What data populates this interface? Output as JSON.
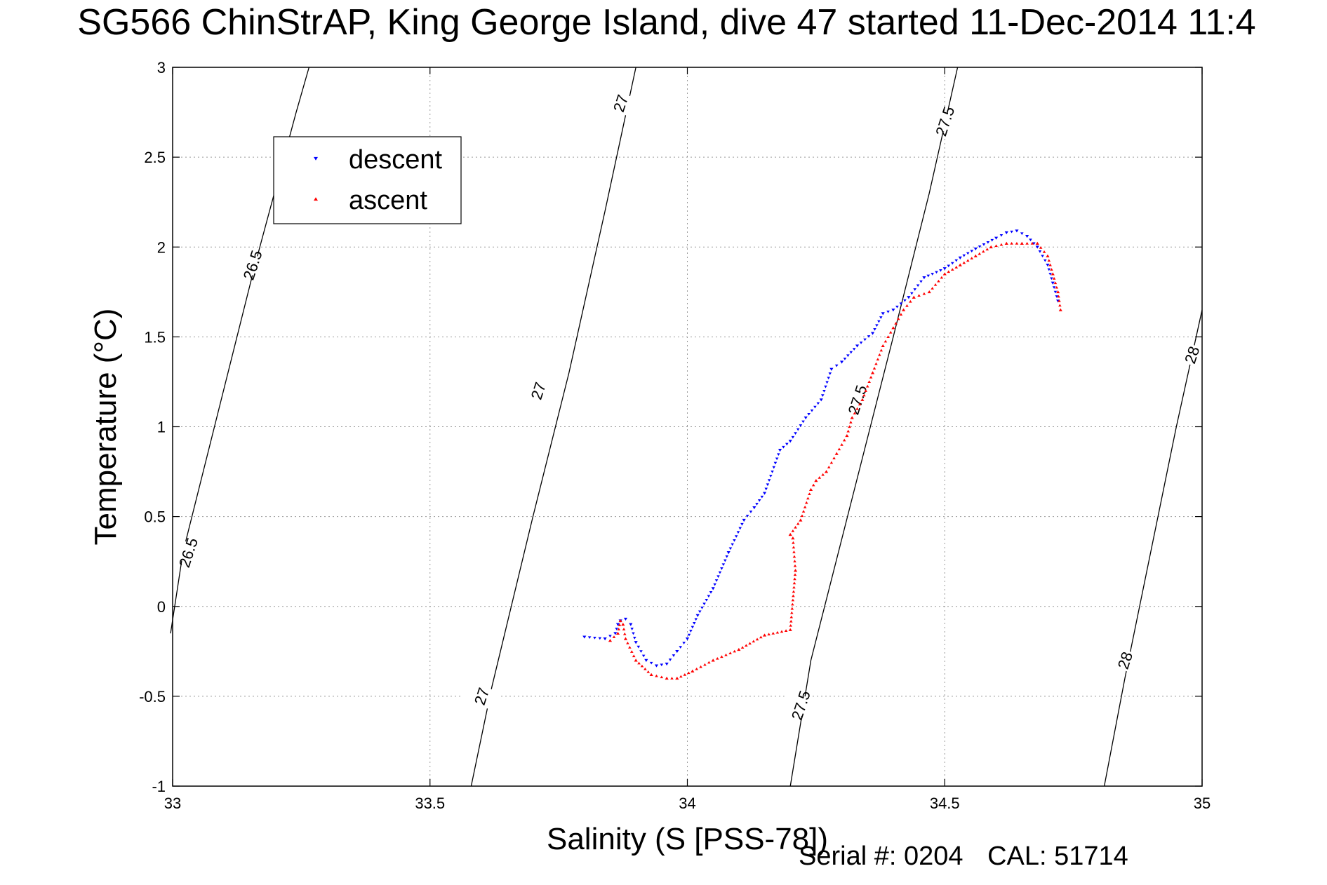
{
  "title": "SG566 ChinStrAP, King George Island, dive 47 started 11-Dec-2014 11:4",
  "footer": {
    "serial": "Serial #: 0204",
    "cal": "CAL: 51714"
  },
  "chart_data": {
    "type": "scatter",
    "title": "SG566 ChinStrAP, King George Island, dive 47 started 11-Dec-2014 11:4",
    "xlabel": "Salinity (S [PSS-78])",
    "ylabel": "Temperature (°C)",
    "xlim": [
      33,
      35
    ],
    "ylim": [
      -1,
      3
    ],
    "xticks": [
      "33",
      "33.5",
      "34",
      "34.5",
      "35"
    ],
    "yticks": [
      "-1",
      "-0.5",
      "0",
      "0.5",
      "1",
      "1.5",
      "2",
      "2.5",
      "3"
    ],
    "grid": true,
    "legend_position": "top-left",
    "colors": {
      "descent": "#0000ff",
      "ascent": "#ff0000",
      "contour": "#000000"
    },
    "contours": [
      {
        "label": "26.5",
        "x": [
          32.996,
          33.02,
          33.09,
          33.16,
          33.24,
          33.265
        ],
        "y": [
          -0.15,
          0.3,
          1.1,
          1.9,
          2.75,
          3.0
        ],
        "label_pos": [
          [
            33.155,
            1.9
          ],
          [
            33.03,
            0.3
          ]
        ]
      },
      {
        "label": "27",
        "x": [
          33.58,
          33.62,
          33.7,
          33.77,
          33.84,
          33.9
        ],
        "y": [
          -1.0,
          -0.45,
          0.5,
          1.3,
          2.2,
          3.0
        ],
        "label_pos": [
          [
            33.87,
            2.8
          ],
          [
            33.71,
            1.2
          ],
          [
            33.6,
            -0.5
          ]
        ]
      },
      {
        "label": "27.5",
        "x": [
          34.2,
          34.24,
          34.32,
          34.4,
          34.47,
          34.525
        ],
        "y": [
          -1.0,
          -0.3,
          0.6,
          1.5,
          2.3,
          3.0
        ],
        "label_pos": [
          [
            34.5,
            2.7
          ],
          [
            34.33,
            1.15
          ],
          [
            34.22,
            -0.55
          ]
        ]
      },
      {
        "label": "28",
        "x": [
          34.81,
          34.85,
          34.9,
          34.95,
          35.0
        ],
        "y": [
          -1.0,
          -0.4,
          0.3,
          1.0,
          1.65
        ],
        "label_pos": [
          [
            34.98,
            1.4
          ],
          [
            34.85,
            -0.3
          ]
        ]
      }
    ],
    "series": [
      {
        "name": "descent",
        "marker": "triangle-down",
        "x": [
          33.8,
          33.84,
          33.86,
          33.865,
          33.87,
          33.88,
          33.89,
          33.9,
          33.92,
          33.94,
          33.96,
          33.98,
          34.0,
          34.02,
          34.05,
          34.08,
          34.11,
          34.13,
          34.15,
          34.18,
          34.2,
          34.23,
          34.26,
          34.28,
          34.3,
          34.33,
          34.36,
          34.38,
          34.4,
          34.43,
          34.46,
          34.5,
          34.53,
          34.56,
          34.6,
          34.62,
          34.64,
          34.66,
          34.68,
          34.7,
          34.71,
          34.72
        ],
        "y": [
          -0.17,
          -0.18,
          -0.15,
          -0.1,
          -0.08,
          -0.07,
          -0.1,
          -0.2,
          -0.3,
          -0.33,
          -0.32,
          -0.25,
          -0.18,
          -0.05,
          0.1,
          0.3,
          0.48,
          0.55,
          0.63,
          0.87,
          0.92,
          1.05,
          1.15,
          1.32,
          1.36,
          1.45,
          1.52,
          1.63,
          1.65,
          1.72,
          1.83,
          1.88,
          1.94,
          1.99,
          2.05,
          2.08,
          2.09,
          2.06,
          2.0,
          1.9,
          1.8,
          1.7
        ]
      },
      {
        "name": "ascent",
        "marker": "triangle-up",
        "x": [
          33.85,
          33.865,
          33.87,
          33.875,
          33.88,
          33.9,
          33.93,
          33.96,
          33.98,
          34.01,
          34.05,
          34.1,
          34.15,
          34.2,
          34.21,
          34.205,
          34.2,
          34.22,
          34.24,
          34.25,
          34.27,
          34.29,
          34.31,
          34.32,
          34.34,
          34.36,
          34.38,
          34.4,
          34.42,
          34.44,
          34.47,
          34.5,
          34.53,
          34.56,
          34.59,
          34.62,
          34.65,
          34.68,
          34.7,
          34.71,
          34.72,
          34.725
        ],
        "y": [
          -0.19,
          -0.15,
          -0.08,
          -0.1,
          -0.18,
          -0.3,
          -0.38,
          -0.4,
          -0.4,
          -0.36,
          -0.3,
          -0.24,
          -0.16,
          -0.13,
          0.2,
          0.38,
          0.4,
          0.48,
          0.65,
          0.7,
          0.75,
          0.85,
          0.95,
          1.05,
          1.15,
          1.3,
          1.45,
          1.55,
          1.65,
          1.72,
          1.75,
          1.85,
          1.9,
          1.95,
          2.0,
          2.02,
          2.02,
          2.02,
          1.95,
          1.85,
          1.75,
          1.65
        ]
      }
    ]
  }
}
